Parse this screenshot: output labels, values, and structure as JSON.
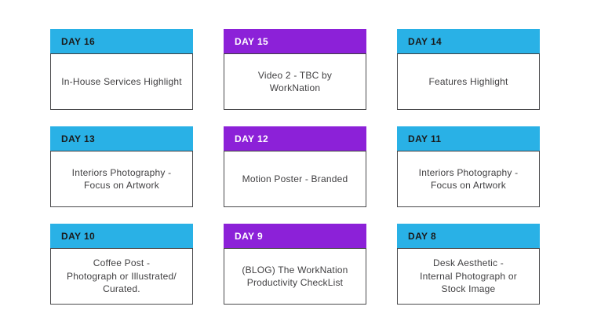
{
  "page": {
    "background": "#ffffff"
  },
  "colors": {
    "cyan": "#29b1e6",
    "purple": "#8c21d8",
    "header_text_on_cyan": "#1a1a1a",
    "header_text_on_purple": "#ffffff",
    "body_text": "#414042",
    "card_border": "#4a4a4c"
  },
  "cards": [
    {
      "day_label": "DAY 16",
      "accent": "#29b1e6",
      "label_color": "#1a1a1a",
      "description": [
        "In-House Services Highlight"
      ]
    },
    {
      "day_label": "DAY 15",
      "accent": "#8c21d8",
      "label_color": "#ffffff",
      "description": [
        "Video 2 - TBC by",
        "WorkNation"
      ]
    },
    {
      "day_label": "DAY 14",
      "accent": "#29b1e6",
      "label_color": "#1a1a1a",
      "description": [
        "Features Highlight"
      ]
    },
    {
      "day_label": "DAY 13",
      "accent": "#29b1e6",
      "label_color": "#1a1a1a",
      "description": [
        "Interiors Photography -",
        "Focus on Artwork"
      ]
    },
    {
      "day_label": "DAY 12",
      "accent": "#8c21d8",
      "label_color": "#ffffff",
      "description": [
        "Motion Poster - Branded"
      ]
    },
    {
      "day_label": "DAY 11",
      "accent": "#29b1e6",
      "label_color": "#1a1a1a",
      "description": [
        "Interiors Photography -",
        "Focus on Artwork"
      ]
    },
    {
      "day_label": "DAY 10",
      "accent": "#29b1e6",
      "label_color": "#1a1a1a",
      "description": [
        "Coffee Post -",
        "Photograph or Illustrated/",
        "Curated."
      ]
    },
    {
      "day_label": "DAY 9",
      "accent": "#8c21d8",
      "label_color": "#ffffff",
      "description": [
        "(BLOG) The WorkNation",
        "Productivity CheckList"
      ]
    },
    {
      "day_label": "DAY 8",
      "accent": "#29b1e6",
      "label_color": "#1a1a1a",
      "description": [
        "Desk Aesthetic -",
        "Internal Photograph or",
        "Stock Image"
      ]
    }
  ]
}
